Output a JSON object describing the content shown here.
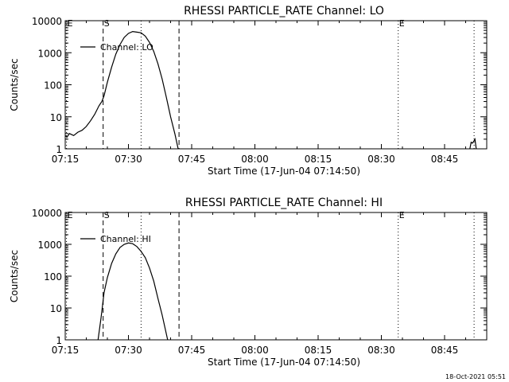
{
  "chart_data": [
    {
      "type": "line",
      "title": "RHESSI PARTICLE_RATE Channel: LO",
      "xlabel": "Start Time (17-Jun-04 07:14:50)",
      "ylabel": "Counts/sec",
      "yscale": "log",
      "ylim": [
        1,
        10000
      ],
      "xlim_min": [
        0,
        100
      ],
      "x_tick_minutes": [
        0,
        15,
        30,
        45,
        60,
        75,
        90
      ],
      "x_tick_labels": [
        "07:15",
        "07:30",
        "07:45",
        "08:00",
        "08:15",
        "08:30",
        "08:45"
      ],
      "y_tick_values": [
        1,
        10,
        100,
        1000,
        10000
      ],
      "y_tick_labels": [
        "1",
        "10",
        "100",
        "1000",
        "10000"
      ],
      "legend": {
        "position": "top-left",
        "entries": [
          "Channel: LO"
        ]
      },
      "markers": [
        {
          "label": "E",
          "minute": 0.3,
          "style": "dotted"
        },
        {
          "label": "S",
          "minute": 9,
          "style": "dashed"
        },
        {
          "label": "",
          "minute": 18,
          "style": "dotted"
        },
        {
          "label": "",
          "minute": 27,
          "style": "dashed"
        },
        {
          "label": "E",
          "minute": 79,
          "style": "dotted"
        },
        {
          "label": "",
          "minute": 97,
          "style": "dotted"
        }
      ],
      "series": [
        {
          "name": "Channel: LO",
          "segments": [
            [
              [
                0,
                2.6
              ],
              [
                0.4,
                2.3
              ],
              [
                1,
                3
              ],
              [
                2,
                2.6
              ],
              [
                3,
                3.3
              ],
              [
                4,
                3.8
              ],
              [
                5,
                5
              ],
              [
                6,
                7.5
              ],
              [
                7,
                12
              ],
              [
                8,
                22
              ],
              [
                8.7,
                30
              ],
              [
                9.2,
                45
              ],
              [
                10,
                120
              ],
              [
                11,
                350
              ],
              [
                12,
                900
              ],
              [
                13,
                1800
              ],
              [
                14,
                3000
              ],
              [
                15,
                4000
              ],
              [
                16,
                4600
              ],
              [
                17,
                4400
              ],
              [
                18,
                4200
              ],
              [
                19,
                3300
              ],
              [
                20,
                2100
              ],
              [
                21,
                1100
              ],
              [
                22,
                450
              ],
              [
                23,
                150
              ],
              [
                24,
                40
              ],
              [
                25,
                10
              ],
              [
                26,
                3
              ],
              [
                26.8,
                1
              ]
            ],
            [
              [
                96,
                1
              ],
              [
                96.3,
                1.6
              ],
              [
                96.6,
                1.5
              ],
              [
                96.9,
                1.7
              ],
              [
                97.2,
                2
              ],
              [
                97.5,
                1
              ]
            ]
          ]
        }
      ]
    },
    {
      "type": "line",
      "title": "RHESSI PARTICLE_RATE Channel: HI",
      "xlabel": "Start Time (17-Jun-04 07:14:50)",
      "ylabel": "Counts/sec",
      "yscale": "log",
      "ylim": [
        1,
        10000
      ],
      "xlim_min": [
        0,
        100
      ],
      "x_tick_minutes": [
        0,
        15,
        30,
        45,
        60,
        75,
        90
      ],
      "x_tick_labels": [
        "07:15",
        "07:30",
        "07:45",
        "08:00",
        "08:15",
        "08:30",
        "08:45"
      ],
      "y_tick_values": [
        1,
        10,
        100,
        1000,
        10000
      ],
      "y_tick_labels": [
        "1",
        "10",
        "100",
        "1000",
        "10000"
      ],
      "legend": {
        "position": "top-left",
        "entries": [
          "Channel: HI"
        ]
      },
      "markers": [
        {
          "label": "E",
          "minute": 0.3,
          "style": "dotted"
        },
        {
          "label": "S",
          "minute": 9,
          "style": "dashed"
        },
        {
          "label": "",
          "minute": 18,
          "style": "dotted"
        },
        {
          "label": "",
          "minute": 27,
          "style": "dashed"
        },
        {
          "label": "E",
          "minute": 79,
          "style": "dotted"
        },
        {
          "label": "",
          "minute": 97,
          "style": "dotted"
        }
      ],
      "series": [
        {
          "name": "Channel: HI",
          "segments": [
            [
              [
                7.8,
                1
              ],
              [
                8.5,
                5
              ],
              [
                9.2,
                30
              ],
              [
                10,
                90
              ],
              [
                11,
                250
              ],
              [
                12,
                500
              ],
              [
                13,
                800
              ],
              [
                14,
                1000
              ],
              [
                15,
                1100
              ],
              [
                16,
                1050
              ],
              [
                17,
                850
              ],
              [
                18,
                600
              ],
              [
                19,
                380
              ],
              [
                20,
                180
              ],
              [
                21,
                70
              ],
              [
                22,
                20
              ],
              [
                23,
                6
              ],
              [
                24.3,
                1
              ]
            ]
          ]
        }
      ]
    }
  ],
  "footer": "18-Oct-2021 05:51"
}
